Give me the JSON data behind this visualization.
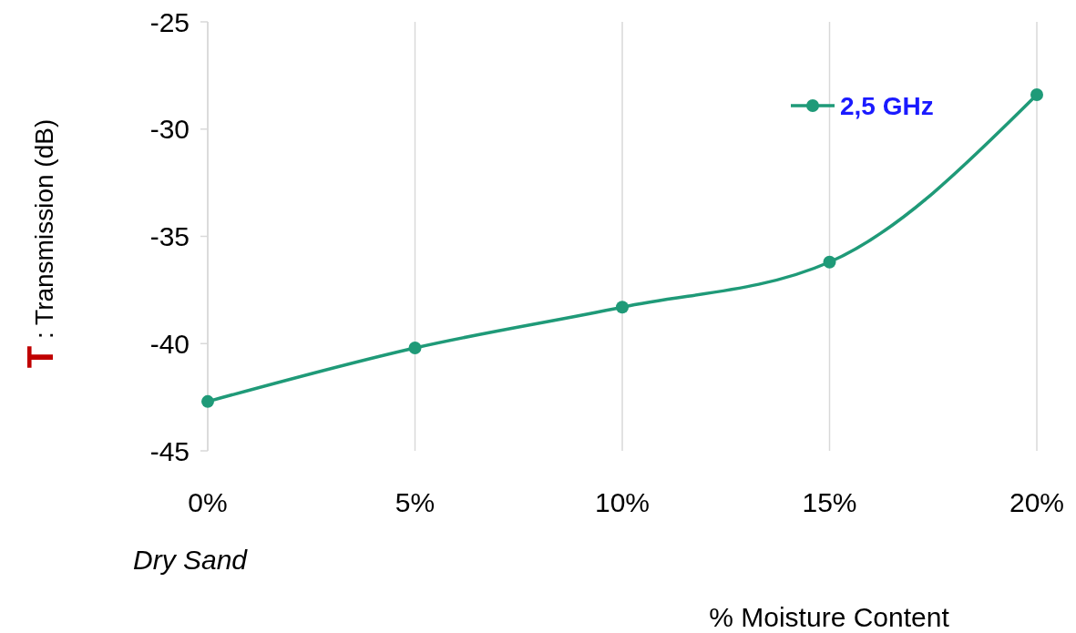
{
  "chart_data": {
    "type": "line",
    "ylabel": "T : Transmission (dB)",
    "xlabel": "% Moisture Content",
    "annotations": [
      "Dry Sand"
    ],
    "x": [
      0,
      5,
      10,
      15,
      20
    ],
    "series": [
      {
        "name": "2,5 GHz",
        "color": "#1f9a78",
        "values": [
          -42.7,
          -40.2,
          -38.3,
          -36.2,
          -28.4
        ]
      }
    ],
    "xlim": [
      0,
      20
    ],
    "xticks": [
      {
        "value": 0,
        "label": "0%"
      },
      {
        "value": 5,
        "label": "5%"
      },
      {
        "value": 10,
        "label": "10%"
      },
      {
        "value": 15,
        "label": "15%"
      },
      {
        "value": 20,
        "label": "20%"
      }
    ],
    "ylim": [
      -45,
      -25
    ],
    "yticks": [
      -45,
      -40,
      -35,
      -30,
      -25
    ],
    "grid": "x",
    "legend": "top right",
    "marker": "circle",
    "line_style": "solid"
  }
}
